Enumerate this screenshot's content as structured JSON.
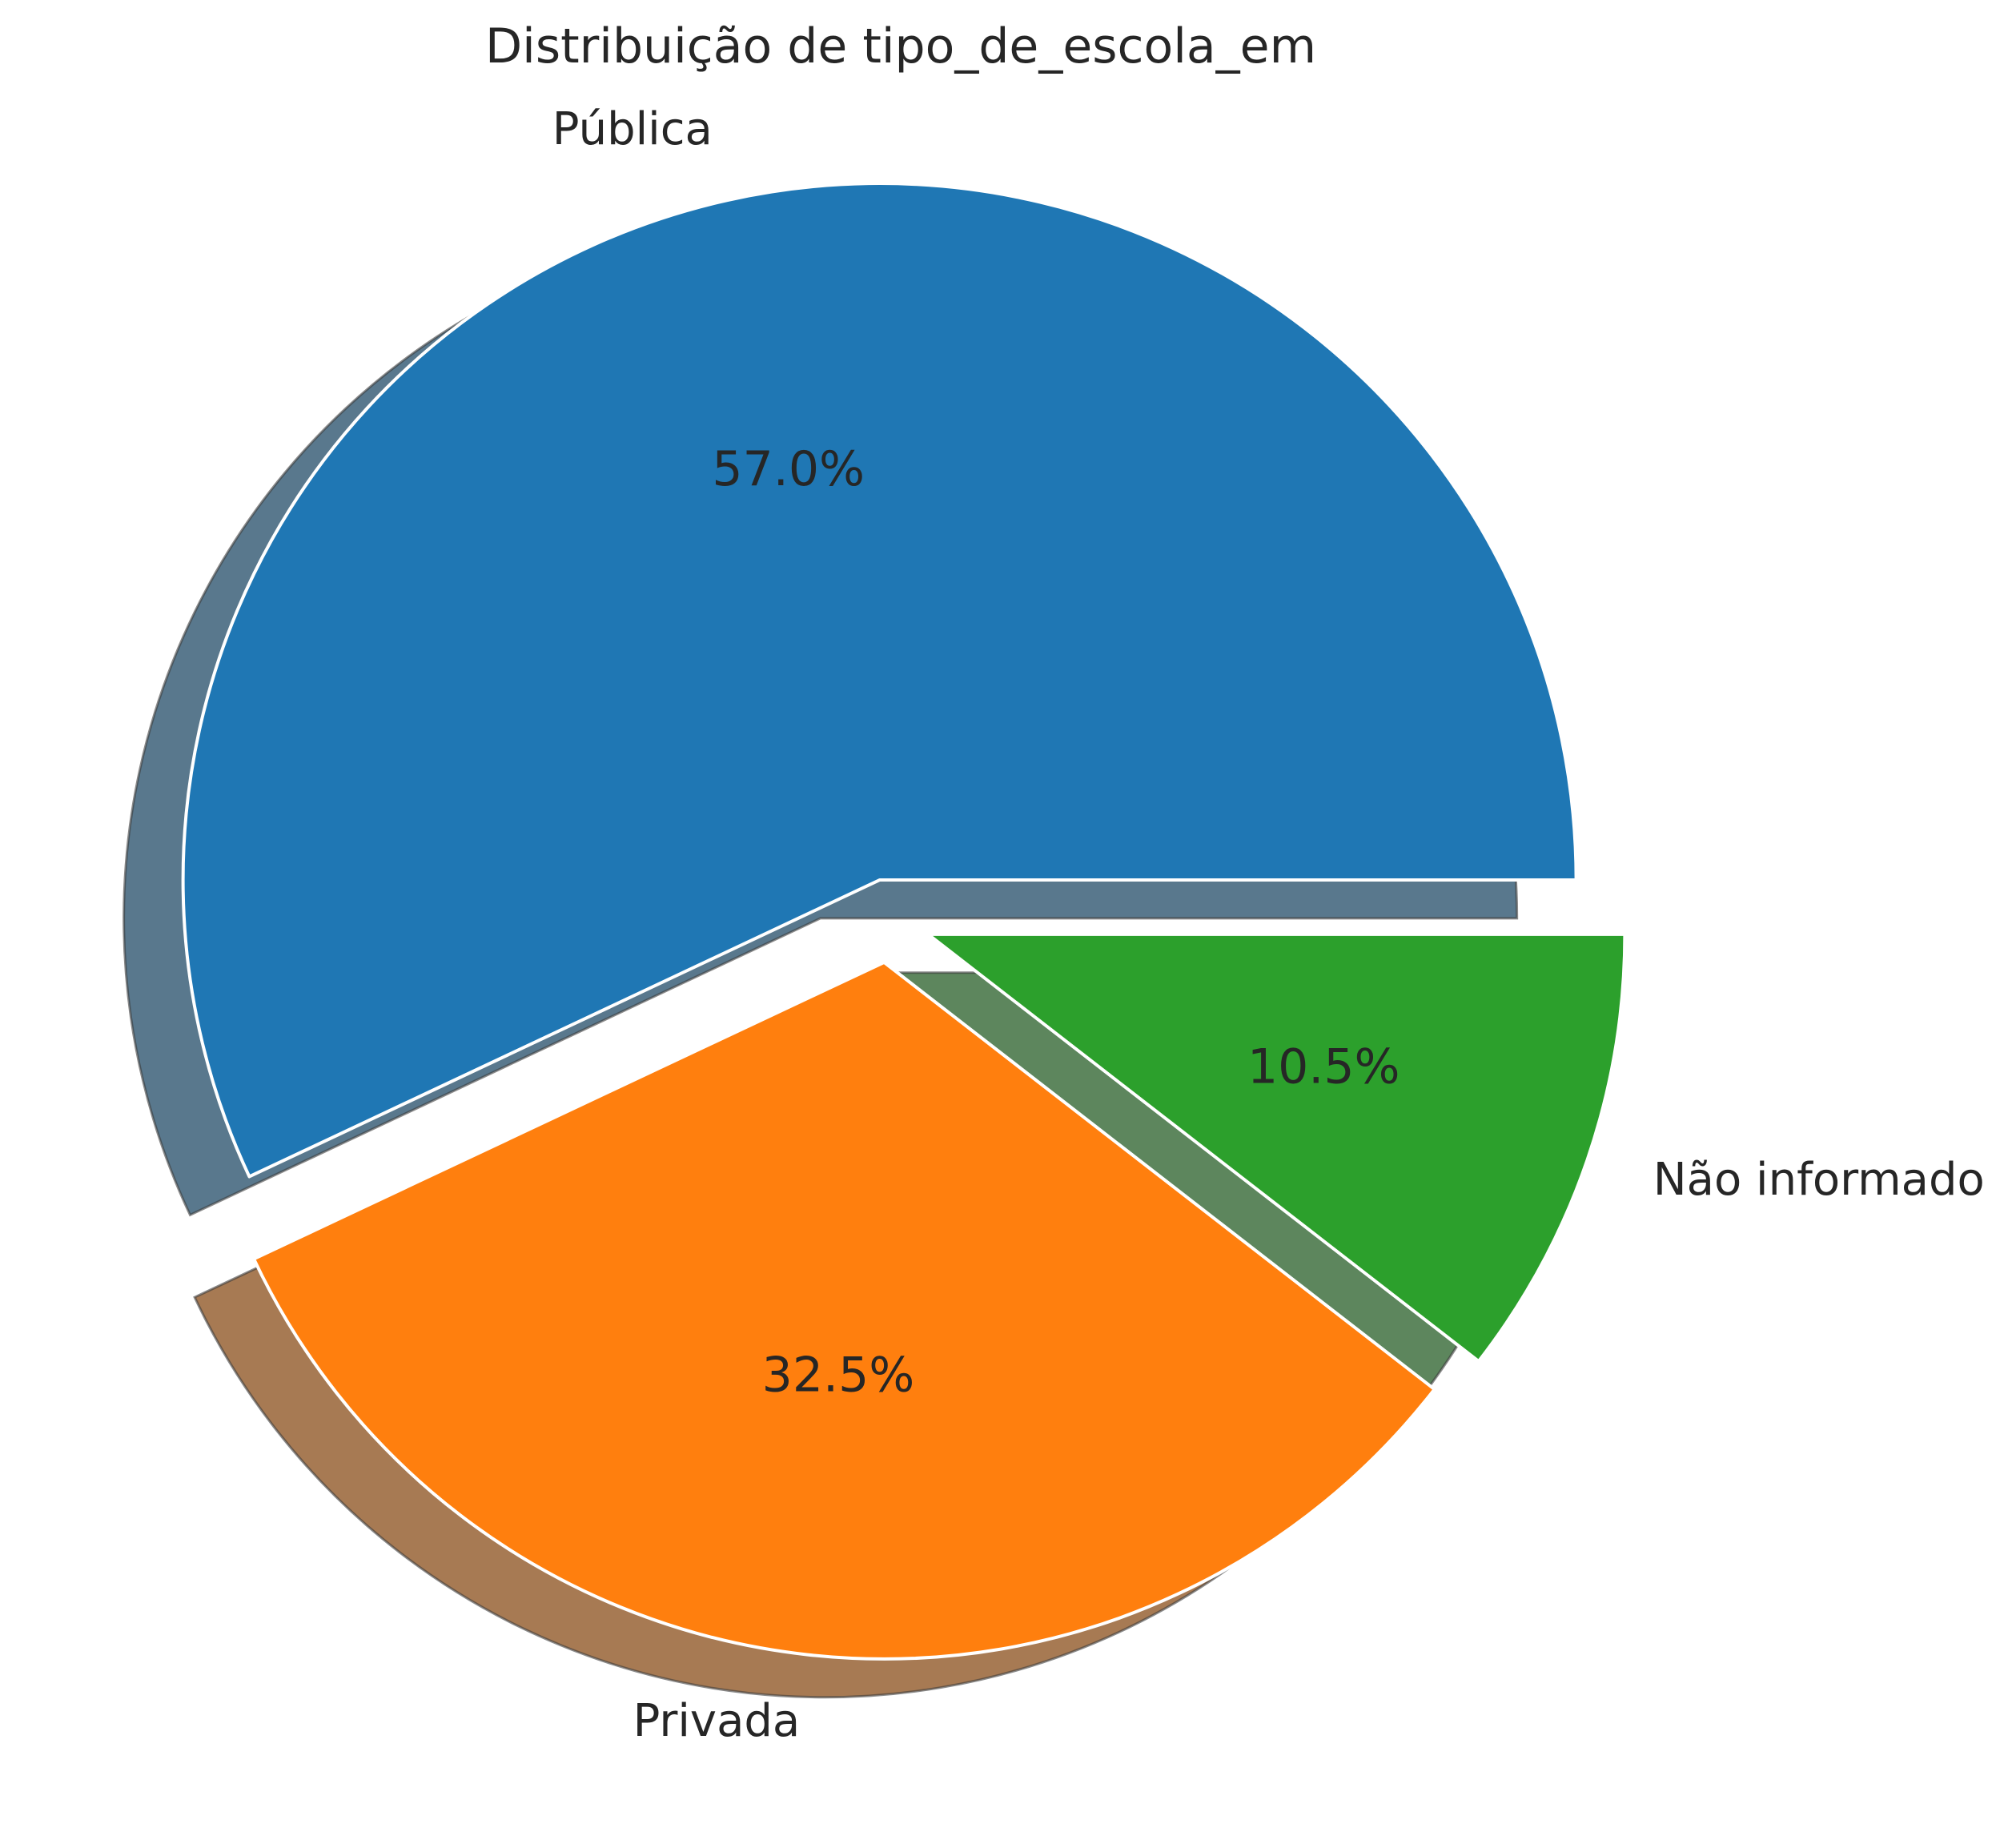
{
  "chart_data": {
    "type": "pie",
    "title": "Distribuição de tipo_de_escola_em",
    "categories": [
      "Pública",
      "Privada",
      "Não informado"
    ],
    "values": [
      57.0,
      32.5,
      10.5
    ],
    "value_labels": [
      "57.0%",
      "32.5%",
      "10.5%"
    ],
    "colors": [
      "#1f77b4",
      "#ff7f0e",
      "#2ca02c"
    ],
    "start_angle": "0 degrees (3 o'clock), counter-clockwise",
    "exploded": true,
    "shadow": true,
    "legend": "none"
  }
}
